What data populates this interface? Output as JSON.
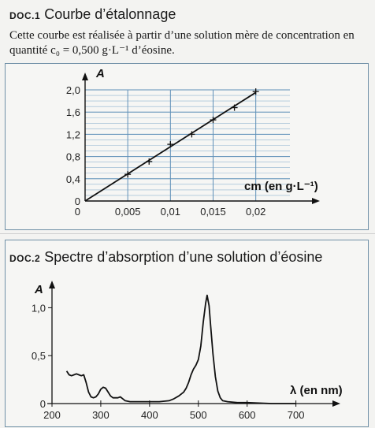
{
  "doc1": {
    "tag": "DOC.1",
    "title": "Courbe d’étalonnage",
    "description": "Cette courbe est réalisée à partir d’une solution mère de concentration en quantité c₀ = 0,500 g·L⁻¹ d’éosine."
  },
  "doc2": {
    "tag": "DOC.2",
    "title": "Spectre d’absorption d’une solution d’éosine"
  },
  "chart_data": [
    {
      "type": "line",
      "title": "Courbe d’étalonnage",
      "xlabel": "cm (en g·L⁻¹)",
      "ylabel": "A",
      "xlim": [
        0,
        0.024
      ],
      "ylim": [
        0,
        2.0
      ],
      "xticks": [
        "0",
        "0,005",
        "0,01",
        "0,015",
        "0,02"
      ],
      "yticks": [
        "0",
        "0,4",
        "0,8",
        "1,2",
        "1,6",
        "2,0"
      ],
      "grid": true,
      "series": [
        {
          "style": "points+fit-line",
          "x": [
            0.0,
            0.005,
            0.0075,
            0.01,
            0.0125,
            0.015,
            0.0175,
            0.02
          ],
          "y": [
            0.0,
            0.48,
            0.71,
            1.02,
            1.2,
            1.46,
            1.68,
            1.97
          ]
        }
      ]
    },
    {
      "type": "line",
      "title": "Spectre d’absorption d’une solution d’éosine",
      "xlabel": "λ (en nm)",
      "ylabel": "A",
      "xlim": [
        200,
        720
      ],
      "ylim": [
        0,
        1.25
      ],
      "xticks": [
        "200",
        "300",
        "400",
        "500",
        "600",
        "700"
      ],
      "yticks": [
        "0",
        "0,5",
        "1,0"
      ],
      "grid": false,
      "series": [
        {
          "x": [
            230,
            235,
            240,
            245,
            250,
            255,
            260,
            265,
            270,
            275,
            280,
            285,
            290,
            295,
            300,
            305,
            310,
            315,
            320,
            325,
            330,
            335,
            340,
            345,
            350,
            360,
            380,
            400,
            420,
            440,
            450,
            460,
            470,
            475,
            480,
            485,
            490,
            495,
            500,
            505,
            510,
            515,
            518,
            522,
            525,
            530,
            535,
            540,
            545,
            550,
            560,
            580,
            600,
            650,
            700
          ],
          "y": [
            0.34,
            0.3,
            0.29,
            0.3,
            0.31,
            0.3,
            0.29,
            0.3,
            0.22,
            0.12,
            0.07,
            0.06,
            0.07,
            0.1,
            0.15,
            0.17,
            0.16,
            0.12,
            0.08,
            0.06,
            0.06,
            0.06,
            0.07,
            0.05,
            0.03,
            0.02,
            0.02,
            0.02,
            0.02,
            0.03,
            0.05,
            0.08,
            0.12,
            0.16,
            0.22,
            0.3,
            0.36,
            0.4,
            0.46,
            0.6,
            0.85,
            1.05,
            1.13,
            1.02,
            0.82,
            0.52,
            0.28,
            0.13,
            0.06,
            0.03,
            0.02,
            0.01,
            0.01,
            0.0,
            0.0
          ]
        }
      ]
    }
  ]
}
